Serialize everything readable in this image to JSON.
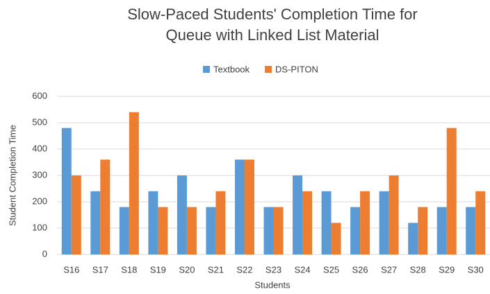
{
  "chart_data": {
    "type": "bar",
    "title": [
      "Slow-Paced Students' Completion Time for",
      "Queue with Linked List Material"
    ],
    "x_label": "Students",
    "y_label": "Student Completion Time",
    "categories": [
      "S16",
      "S17",
      "S18",
      "S19",
      "S20",
      "S21",
      "S22",
      "S23",
      "S24",
      "S25",
      "S26",
      "S27",
      "S28",
      "S29",
      "S30"
    ],
    "series": [
      {
        "name": "Textbook",
        "color": "#5b9bd5",
        "values": [
          480,
          240,
          180,
          240,
          300,
          180,
          360,
          180,
          300,
          240,
          180,
          240,
          120,
          180,
          180
        ]
      },
      {
        "name": "DS-PITON",
        "color": "#ed7d31",
        "values": [
          300,
          360,
          540,
          180,
          180,
          240,
          360,
          180,
          240,
          120,
          240,
          300,
          180,
          480,
          240
        ]
      }
    ],
    "ylim": [
      0,
      600
    ],
    "yticks": [
      0,
      100,
      200,
      300,
      400,
      500,
      600
    ],
    "grid": true,
    "legend": "top"
  }
}
